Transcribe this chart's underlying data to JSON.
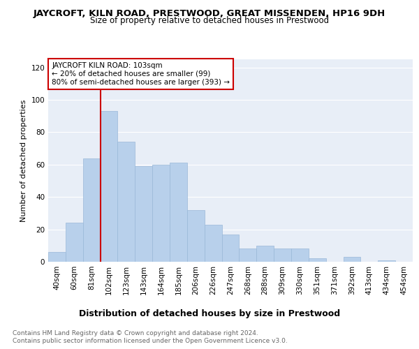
{
  "title": "JAYCROFT, KILN ROAD, PRESTWOOD, GREAT MISSENDEN, HP16 9DH",
  "subtitle": "Size of property relative to detached houses in Prestwood",
  "xlabel": "Distribution of detached houses by size in Prestwood",
  "ylabel": "Number of detached properties",
  "bar_color": "#b8d0eb",
  "bar_edge_color": "#9ab8d8",
  "categories": [
    "40sqm",
    "60sqm",
    "81sqm",
    "102sqm",
    "123sqm",
    "143sqm",
    "164sqm",
    "185sqm",
    "206sqm",
    "226sqm",
    "247sqm",
    "268sqm",
    "288sqm",
    "309sqm",
    "330sqm",
    "351sqm",
    "371sqm",
    "392sqm",
    "413sqm",
    "434sqm",
    "454sqm"
  ],
  "values": [
    6,
    24,
    64,
    93,
    74,
    59,
    60,
    61,
    32,
    23,
    17,
    8,
    10,
    8,
    8,
    2,
    0,
    3,
    0,
    1,
    0
  ],
  "ylim": [
    0,
    125
  ],
  "yticks": [
    0,
    20,
    40,
    60,
    80,
    100,
    120
  ],
  "highlight_bar_index": 3,
  "highlight_color": "#cc0000",
  "annotation_title": "JAYCROFT KILN ROAD: 103sqm",
  "annotation_line1": "← 20% of detached houses are smaller (99)",
  "annotation_line2": "80% of semi-detached houses are larger (393) →",
  "footer_line1": "Contains HM Land Registry data © Crown copyright and database right 2024.",
  "footer_line2": "Contains public sector information licensed under the Open Government Licence v3.0.",
  "plot_bg_color": "#e8eef7",
  "fig_bg_color": "#ffffff",
  "grid_color": "#ffffff",
  "title_fontsize": 9.5,
  "subtitle_fontsize": 8.5,
  "ylabel_fontsize": 8,
  "xlabel_fontsize": 9,
  "tick_fontsize": 7.5,
  "annotation_fontsize": 7.5,
  "footer_fontsize": 6.5
}
